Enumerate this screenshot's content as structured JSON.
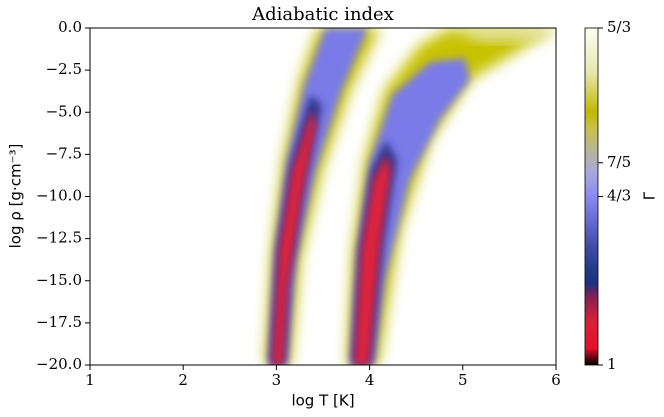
{
  "chart_data": {
    "type": "heatmap",
    "title": "Adiabatic index",
    "x_label": "log T [K]",
    "y_label": "log ρ [g·cm⁻³]",
    "xlim": [
      1,
      6
    ],
    "xticks": [
      1,
      2,
      3,
      4,
      5,
      6
    ],
    "ylim": [
      -20,
      0
    ],
    "yticks": [
      {
        "value": 0,
        "label": "0.0"
      },
      {
        "value": -2.5,
        "label": "−2.5"
      },
      {
        "value": -5,
        "label": "−5.0"
      },
      {
        "value": -7.5,
        "label": "−7.5"
      },
      {
        "value": -10,
        "label": "−10.0"
      },
      {
        "value": -12.5,
        "label": "−12.5"
      },
      {
        "value": -15,
        "label": "−15.0"
      },
      {
        "value": -17.5,
        "label": "−17.5"
      },
      {
        "value": -20,
        "label": "−20.0"
      }
    ],
    "colorbar": {
      "label": "Γ",
      "lim": [
        1,
        1.6667
      ],
      "ticks": [
        {
          "value": 1.6667,
          "label": "5/3"
        },
        {
          "value": 1.4,
          "label": "7/5"
        },
        {
          "value": 1.3333,
          "label": "4/3"
        },
        1
      ]
    }
  }
}
